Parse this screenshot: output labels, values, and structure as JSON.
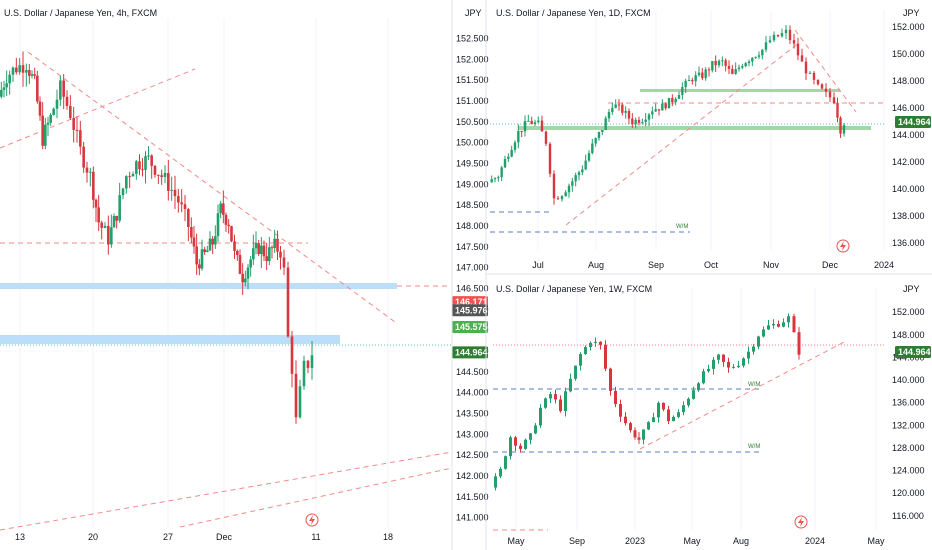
{
  "colors": {
    "up": "#26a69a",
    "down": "#ef5350",
    "candle": "#22a06b",
    "downc": "#d9363e",
    "grid": "#f0f3fa",
    "divider": "#e0e3eb",
    "dash_red": "#f28b8b",
    "dash_blue": "#5b7fbf",
    "zone_blue": "#bbdefb",
    "zone_green": "#a5d6a7",
    "tag_last": "#2e7d32",
    "tag_red": "#ef5350",
    "tag_grey": "#555555",
    "tag_green": "#4caf50"
  },
  "chart_data": [
    {
      "id": "4h",
      "type": "candlestick",
      "title": "U.S. Dollar / Japanese Yen, 4h, FXCM",
      "unit": "JPY",
      "x_ticks": [
        "13",
        "20",
        "27",
        "Dec",
        "11",
        "18"
      ],
      "y_ticks": [
        "152.500",
        "152.000",
        "151.500",
        "151.000",
        "150.500",
        "150.000",
        "149.500",
        "149.000",
        "148.500",
        "148.000",
        "147.500",
        "147.000",
        "146.500",
        "146.000",
        "145.500",
        "145.000",
        "144.500",
        "144.000",
        "143.500",
        "143.000",
        "142.500",
        "142.000",
        "141.500",
        "141.000"
      ],
      "ylim": [
        140.75,
        152.75
      ],
      "tags": [
        {
          "label": "146.171",
          "value": 146.171,
          "color": "tag_red"
        },
        {
          "label": "145.976",
          "value": 145.976,
          "color": "tag_grey"
        },
        {
          "label": "145.575",
          "value": 145.575,
          "color": "tag_green"
        },
        {
          "label": "144.964",
          "value": 144.964,
          "color": "tag_last"
        }
      ],
      "path": [
        [
          0,
          151.1
        ],
        [
          8,
          151.6
        ],
        [
          18,
          151.8
        ],
        [
          28,
          151.9
        ],
        [
          36,
          151.4
        ],
        [
          44,
          150.1
        ],
        [
          52,
          150.6
        ],
        [
          62,
          151.3
        ],
        [
          72,
          150.7
        ],
        [
          82,
          149.8
        ],
        [
          92,
          149.2
        ],
        [
          100,
          148.1
        ],
        [
          110,
          147.7
        ],
        [
          118,
          148.3
        ],
        [
          128,
          149.2
        ],
        [
          138,
          149.5
        ],
        [
          150,
          149.6
        ],
        [
          160,
          149.3
        ],
        [
          170,
          149.0
        ],
        [
          180,
          148.6
        ],
        [
          190,
          148.0
        ],
        [
          198,
          147.1
        ],
        [
          206,
          147.3
        ],
        [
          214,
          147.6
        ],
        [
          222,
          148.4
        ],
        [
          230,
          148.1
        ],
        [
          236,
          147.3
        ],
        [
          244,
          146.8
        ],
        [
          252,
          147.2
        ],
        [
          260,
          147.5
        ],
        [
          268,
          147.3
        ],
        [
          276,
          147.5
        ],
        [
          282,
          147.4
        ],
        [
          286,
          146.9
        ],
        [
          290,
          145.3
        ],
        [
          294,
          144.6
        ],
        [
          298,
          143.3
        ],
        [
          302,
          144.0
        ],
        [
          306,
          144.6
        ],
        [
          310,
          144.7
        ],
        [
          314,
          144.96
        ]
      ]
    },
    {
      "id": "1d",
      "type": "candlestick",
      "title": "U.S. Dollar / Japanese Yen, 1D, FXCM",
      "unit": "JPY",
      "x_ticks": [
        "Jul",
        "Aug",
        "Sep",
        "Oct",
        "Nov",
        "Dec",
        "2024"
      ],
      "y_ticks": [
        "152.000",
        "150.000",
        "148.000",
        "146.000",
        "144.000",
        "142.000",
        "140.000",
        "138.000",
        "136.000"
      ],
      "ylim": [
        135.5,
        152.5
      ],
      "tags": [
        {
          "label": "144.964",
          "value": 144.964,
          "color": "tag_last"
        }
      ],
      "path": [
        [
          490,
          140.5
        ],
        [
          500,
          141.0
        ],
        [
          510,
          142.7
        ],
        [
          520,
          144.2
        ],
        [
          530,
          145.0
        ],
        [
          540,
          144.8
        ],
        [
          548,
          143.5
        ],
        [
          556,
          139.3
        ],
        [
          564,
          139.7
        ],
        [
          574,
          140.6
        ],
        [
          584,
          141.6
        ],
        [
          594,
          143.2
        ],
        [
          604,
          144.5
        ],
        [
          614,
          146.3
        ],
        [
          624,
          145.8
        ],
        [
          634,
          145.0
        ],
        [
          644,
          145.2
        ],
        [
          654,
          145.9
        ],
        [
          664,
          146.1
        ],
        [
          674,
          146.6
        ],
        [
          684,
          147.5
        ],
        [
          694,
          148.2
        ],
        [
          704,
          148.4
        ],
        [
          714,
          149.2
        ],
        [
          724,
          149.4
        ],
        [
          734,
          148.4
        ],
        [
          744,
          149.3
        ],
        [
          754,
          149.8
        ],
        [
          764,
          150.3
        ],
        [
          772,
          151.0
        ],
        [
          780,
          151.3
        ],
        [
          788,
          151.6
        ],
        [
          796,
          150.6
        ],
        [
          804,
          149.3
        ],
        [
          812,
          148.3
        ],
        [
          820,
          147.5
        ],
        [
          828,
          147.0
        ],
        [
          836,
          146.6
        ],
        [
          842,
          144.4
        ],
        [
          846,
          144.96
        ]
      ]
    },
    {
      "id": "1w",
      "type": "candlestick",
      "title": "U.S. Dollar / Japanese Yen, 1W, FXCM",
      "unit": "JPY",
      "x_ticks": [
        "May",
        "Sep",
        "2023",
        "May",
        "Aug",
        "2024",
        "May"
      ],
      "y_ticks": [
        "152.000",
        "148.000",
        "144.000",
        "140.000",
        "136.000",
        "132.000",
        "128.000",
        "124.000",
        "120.000",
        "116.000"
      ],
      "ylim": [
        113.5,
        154.5
      ],
      "tags": [
        {
          "label": "144.964",
          "value": 144.964,
          "color": "tag_last"
        }
      ],
      "path": [
        [
          493,
          121.0
        ],
        [
          503,
          124.0
        ],
        [
          513,
          130.0
        ],
        [
          523,
          128.0
        ],
        [
          533,
          130.0
        ],
        [
          543,
          135.0
        ],
        [
          553,
          137.5
        ],
        [
          563,
          135.0
        ],
        [
          573,
          140.0
        ],
        [
          583,
          144.5
        ],
        [
          593,
          147.0
        ],
        [
          603,
          146.0
        ],
        [
          613,
          138.0
        ],
        [
          623,
          134.0
        ],
        [
          633,
          131.0
        ],
        [
          641,
          129.5
        ],
        [
          651,
          132.0
        ],
        [
          661,
          136.0
        ],
        [
          671,
          133.0
        ],
        [
          681,
          134.0
        ],
        [
          691,
          137.0
        ],
        [
          701,
          140.0
        ],
        [
          711,
          142.0
        ],
        [
          721,
          144.0
        ],
        [
          731,
          142.0
        ],
        [
          741,
          143.0
        ],
        [
          751,
          145.0
        ],
        [
          761,
          148.0
        ],
        [
          771,
          149.5
        ],
        [
          781,
          150.0
        ],
        [
          791,
          151.0
        ],
        [
          797,
          148.0
        ],
        [
          801,
          144.96
        ]
      ]
    }
  ],
  "annotations": {
    "wm_1d": "W/M",
    "wm_1w_a": "W/M",
    "wm_1w_b": "W/M"
  }
}
